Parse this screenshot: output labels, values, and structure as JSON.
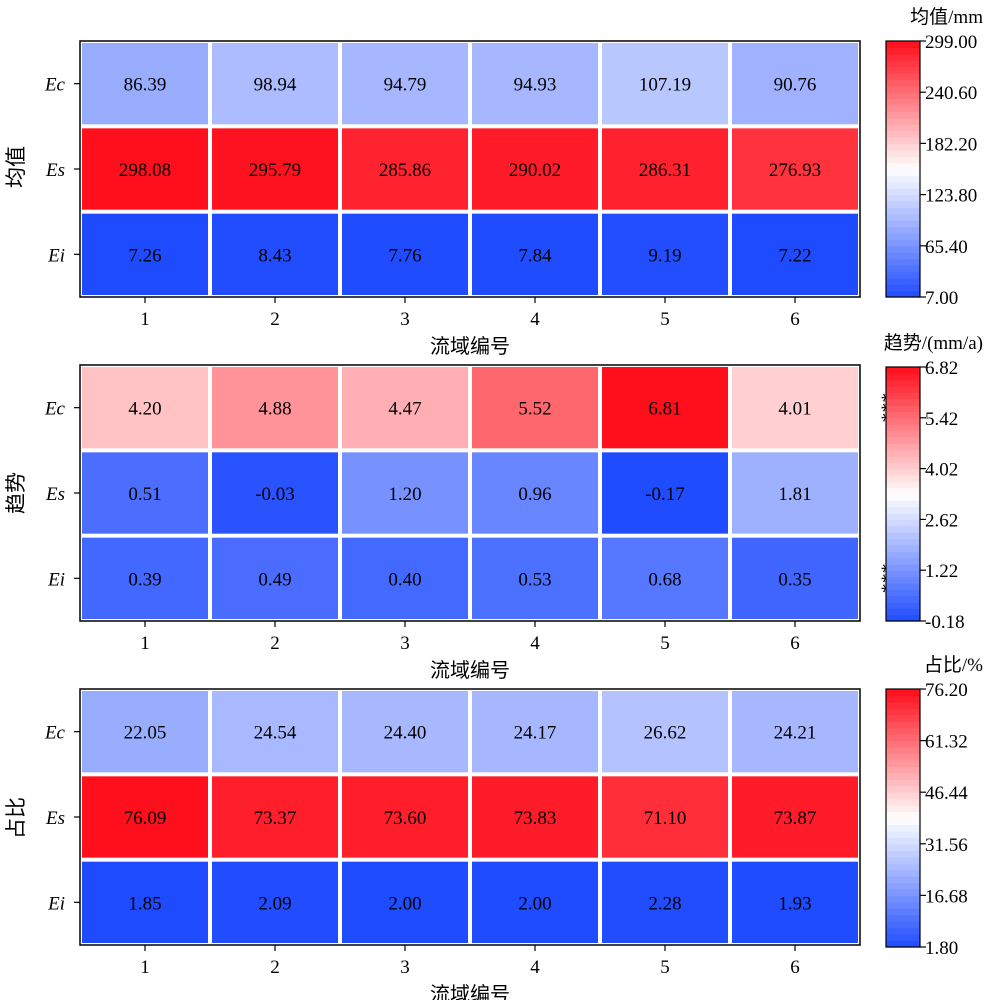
{
  "chart_data": [
    {
      "type": "heatmap",
      "ylabel": "均值",
      "xlabel": "流域编号",
      "x": [
        "1",
        "2",
        "3",
        "4",
        "5",
        "6"
      ],
      "rows": [
        "Ec",
        "Es",
        "Ei"
      ],
      "values": [
        [
          86.39,
          98.94,
          94.79,
          94.93,
          107.19,
          90.76
        ],
        [
          298.08,
          295.79,
          285.86,
          290.02,
          286.31,
          276.93
        ],
        [
          7.26,
          8.43,
          7.76,
          7.84,
          9.19,
          7.22
        ]
      ],
      "labels": [
        [
          "86.39",
          "98.94",
          "94.79",
          "94.93",
          "107.19",
          "90.76"
        ],
        [
          "298.08",
          "295.79",
          "285.86",
          "290.02",
          "286.31",
          "276.93"
        ],
        [
          "7.26",
          "8.43",
          "7.76",
          "7.84",
          "9.19",
          "7.22"
        ]
      ],
      "significance": [
        "",
        "",
        ""
      ],
      "colorbar": {
        "title": "均值/mm",
        "range": [
          7.0,
          299.0
        ],
        "ticks": [
          "7.00",
          "65.40",
          "123.80",
          "182.20",
          "240.60",
          "299.00"
        ],
        "colormap": "bwr"
      }
    },
    {
      "type": "heatmap",
      "ylabel": "趋势",
      "xlabel": "流域编号",
      "x": [
        "1",
        "2",
        "3",
        "4",
        "5",
        "6"
      ],
      "rows": [
        "Ec",
        "Es",
        "Ei"
      ],
      "values": [
        [
          4.2,
          4.88,
          4.47,
          5.52,
          6.81,
          4.01
        ],
        [
          0.51,
          -0.03,
          1.2,
          0.96,
          -0.17,
          1.81
        ],
        [
          0.39,
          0.49,
          0.4,
          0.53,
          0.68,
          0.35
        ]
      ],
      "labels": [
        [
          "4.20",
          "4.88",
          "4.47",
          "5.52",
          "6.81",
          "4.01"
        ],
        [
          "0.51",
          "-0.03",
          "1.20",
          "0.96",
          "-0.17",
          "1.81"
        ],
        [
          "0.39",
          "0.49",
          "0.40",
          "0.53",
          "0.68",
          "0.35"
        ]
      ],
      "significance": [
        "***",
        "",
        "***"
      ],
      "colorbar": {
        "title": "趋势/(mm/a)",
        "range": [
          -0.18,
          6.82
        ],
        "ticks": [
          "-0.18",
          "1.22",
          "2.62",
          "4.02",
          "5.42",
          "6.82"
        ],
        "colormap": "bwr"
      }
    },
    {
      "type": "heatmap",
      "ylabel": "占比",
      "xlabel": "流域编号",
      "x": [
        "1",
        "2",
        "3",
        "4",
        "5",
        "6"
      ],
      "rows": [
        "Ec",
        "Es",
        "Ei"
      ],
      "values": [
        [
          22.05,
          24.54,
          24.4,
          24.17,
          26.62,
          24.21
        ],
        [
          76.09,
          73.37,
          73.6,
          73.83,
          71.1,
          73.87
        ],
        [
          1.85,
          2.09,
          2.0,
          2.0,
          2.28,
          1.93
        ]
      ],
      "labels": [
        [
          "22.05",
          "24.54",
          "24.40",
          "24.17",
          "26.62",
          "24.21"
        ],
        [
          "76.09",
          "73.37",
          "73.60",
          "73.83",
          "71.10",
          "73.87"
        ],
        [
          "1.85",
          "2.09",
          "2.00",
          "2.00",
          "2.28",
          "1.93"
        ]
      ],
      "significance": [
        "",
        "",
        ""
      ],
      "colorbar": {
        "title": "占比/%",
        "range": [
          1.8,
          76.2
        ],
        "ticks": [
          "1.80",
          "16.68",
          "31.56",
          "46.44",
          "61.32",
          "76.20"
        ],
        "colormap": "bwr"
      }
    }
  ],
  "colors": {
    "low": "#1f4bff",
    "mid": "#ffffff",
    "high": "#ff0d1a"
  }
}
